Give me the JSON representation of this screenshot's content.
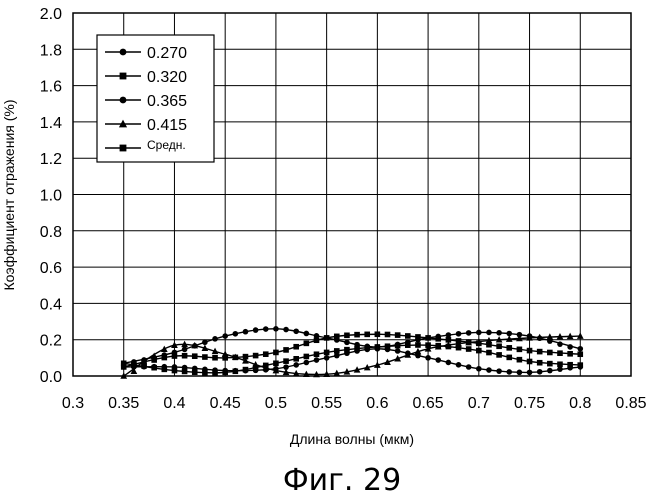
{
  "chart_data": {
    "type": "line",
    "title": "",
    "xlabel": "Длина волны (мкм)",
    "ylabel": "Коэффициент отражения (%)",
    "xlim": [
      0.3,
      0.85
    ],
    "ylim": [
      0.0,
      2.0
    ],
    "x_ticks": [
      "0.3",
      "0.35",
      "0.4",
      "0.45",
      "0.5",
      "0.55",
      "0.6",
      "0.65",
      "0.7",
      "0.75",
      "0.8",
      "0.85"
    ],
    "y_ticks": [
      "0.0",
      "0.2",
      "0.4",
      "0.6",
      "0.8",
      "1.0",
      "1.2",
      "1.4",
      "1.6",
      "1.8",
      "2.0"
    ],
    "grid": true,
    "legend_position": "top-left",
    "x": [
      0.35,
      0.4,
      0.45,
      0.5,
      0.55,
      0.6,
      0.65,
      0.7,
      0.75,
      0.8
    ],
    "series": [
      {
        "name": "0.270",
        "marker": "circle",
        "values": [
          0.05,
          0.05,
          0.03,
          0.04,
          0.1,
          0.15,
          0.1,
          0.04,
          0.02,
          0.05
        ]
      },
      {
        "name": "0.320",
        "marker": "square",
        "values": [
          0.07,
          0.03,
          0.02,
          0.07,
          0.13,
          0.16,
          0.17,
          0.14,
          0.08,
          0.06
        ]
      },
      {
        "name": "0.365",
        "marker": "circle",
        "values": [
          0.07,
          0.13,
          0.22,
          0.26,
          0.21,
          0.16,
          0.21,
          0.24,
          0.22,
          0.15
        ]
      },
      {
        "name": "0.415",
        "marker": "triangle",
        "values": [
          0.0,
          0.17,
          0.12,
          0.03,
          0.01,
          0.06,
          0.15,
          0.19,
          0.21,
          0.22
        ]
      },
      {
        "name": "Средн.",
        "marker": "square",
        "values": [
          0.05,
          0.11,
          0.1,
          0.13,
          0.21,
          0.23,
          0.21,
          0.18,
          0.14,
          0.12
        ]
      }
    ]
  },
  "caption": "Фиг. 29"
}
